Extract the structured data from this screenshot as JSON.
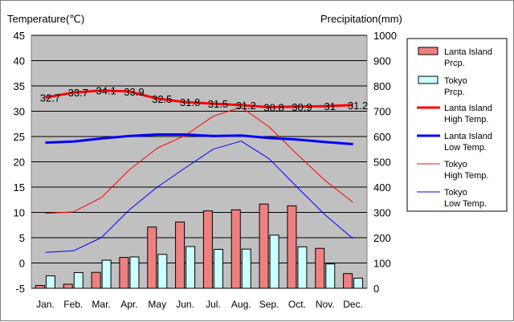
{
  "chart_data": {
    "type": "bar+line",
    "categories": [
      "Jan.",
      "Feb.",
      "Mar.",
      "Apr.",
      "May",
      "Jun.",
      "Jul.",
      "Aug.",
      "Sep.",
      "Oct.",
      "Nov.",
      "Dec."
    ],
    "left_axis": {
      "title": "Temperature(℃)",
      "min": -5,
      "max": 45,
      "step": 5
    },
    "right_axis": {
      "title": "Precipitation(mm)",
      "min": 0,
      "max": 1000,
      "step": 100
    },
    "bar_series": [
      {
        "name": "Lanta Island Prcp.",
        "color": "#f08080",
        "axis": "right",
        "values": [
          11,
          16,
          63,
          122,
          242,
          262,
          306,
          310,
          333,
          326,
          158,
          58
        ]
      },
      {
        "name": "Tokyo Prcp.",
        "color": "#ccffff",
        "axis": "right",
        "values": [
          49,
          62,
          111,
          124,
          134,
          165,
          154,
          155,
          210,
          164,
          96,
          40
        ]
      }
    ],
    "line_series": [
      {
        "name": "Lanta Island High Temp.",
        "color": "#ff0000",
        "width": "thick",
        "axis": "left",
        "values": [
          32.7,
          33.7,
          34.1,
          33.9,
          32.5,
          31.8,
          31.5,
          31.2,
          30.8,
          30.9,
          31,
          31.2
        ],
        "labels": [
          "32.7",
          "33.7",
          "34.1",
          "33.9",
          "32.5",
          "31.8",
          "31.5",
          "31.2",
          "30.8",
          "30.9",
          "31",
          "31.2"
        ]
      },
      {
        "name": "Lanta Island Low Temp.",
        "color": "#0000ff",
        "width": "thick",
        "axis": "left",
        "values": [
          23.8,
          24.0,
          24.6,
          25.1,
          25.4,
          25.4,
          25.1,
          25.2,
          24.7,
          24.4,
          23.9,
          23.5
        ]
      },
      {
        "name": "Tokyo High Temp.",
        "color": "#ff0000",
        "width": "thin",
        "axis": "left",
        "values": [
          9.8,
          10.1,
          12.9,
          18.4,
          22.7,
          25.2,
          29.0,
          30.8,
          26.9,
          21.5,
          16.3,
          12.0
        ]
      },
      {
        "name": "Tokyo Low Temp.",
        "color": "#0000ff",
        "width": "thin",
        "axis": "left",
        "values": [
          2.1,
          2.4,
          5.0,
          10.5,
          15.0,
          18.8,
          22.5,
          24.1,
          20.6,
          15.0,
          9.5,
          4.8
        ]
      }
    ],
    "legend": {
      "position": "right",
      "entries": [
        {
          "line1": "Lanta Island",
          "line2": "Prcp."
        },
        {
          "line1": "Tokyo",
          "line2": "Prcp."
        },
        {
          "line1": "Lanta Island",
          "line2": "High Temp."
        },
        {
          "line1": "Lanta Island",
          "line2": "Low Temp."
        },
        {
          "line1": "Tokyo",
          "line2": "High Temp."
        },
        {
          "line1": "Tokyo",
          "line2": "Low Temp."
        }
      ]
    },
    "plot_background": "#c0c0c0",
    "grid": true
  }
}
